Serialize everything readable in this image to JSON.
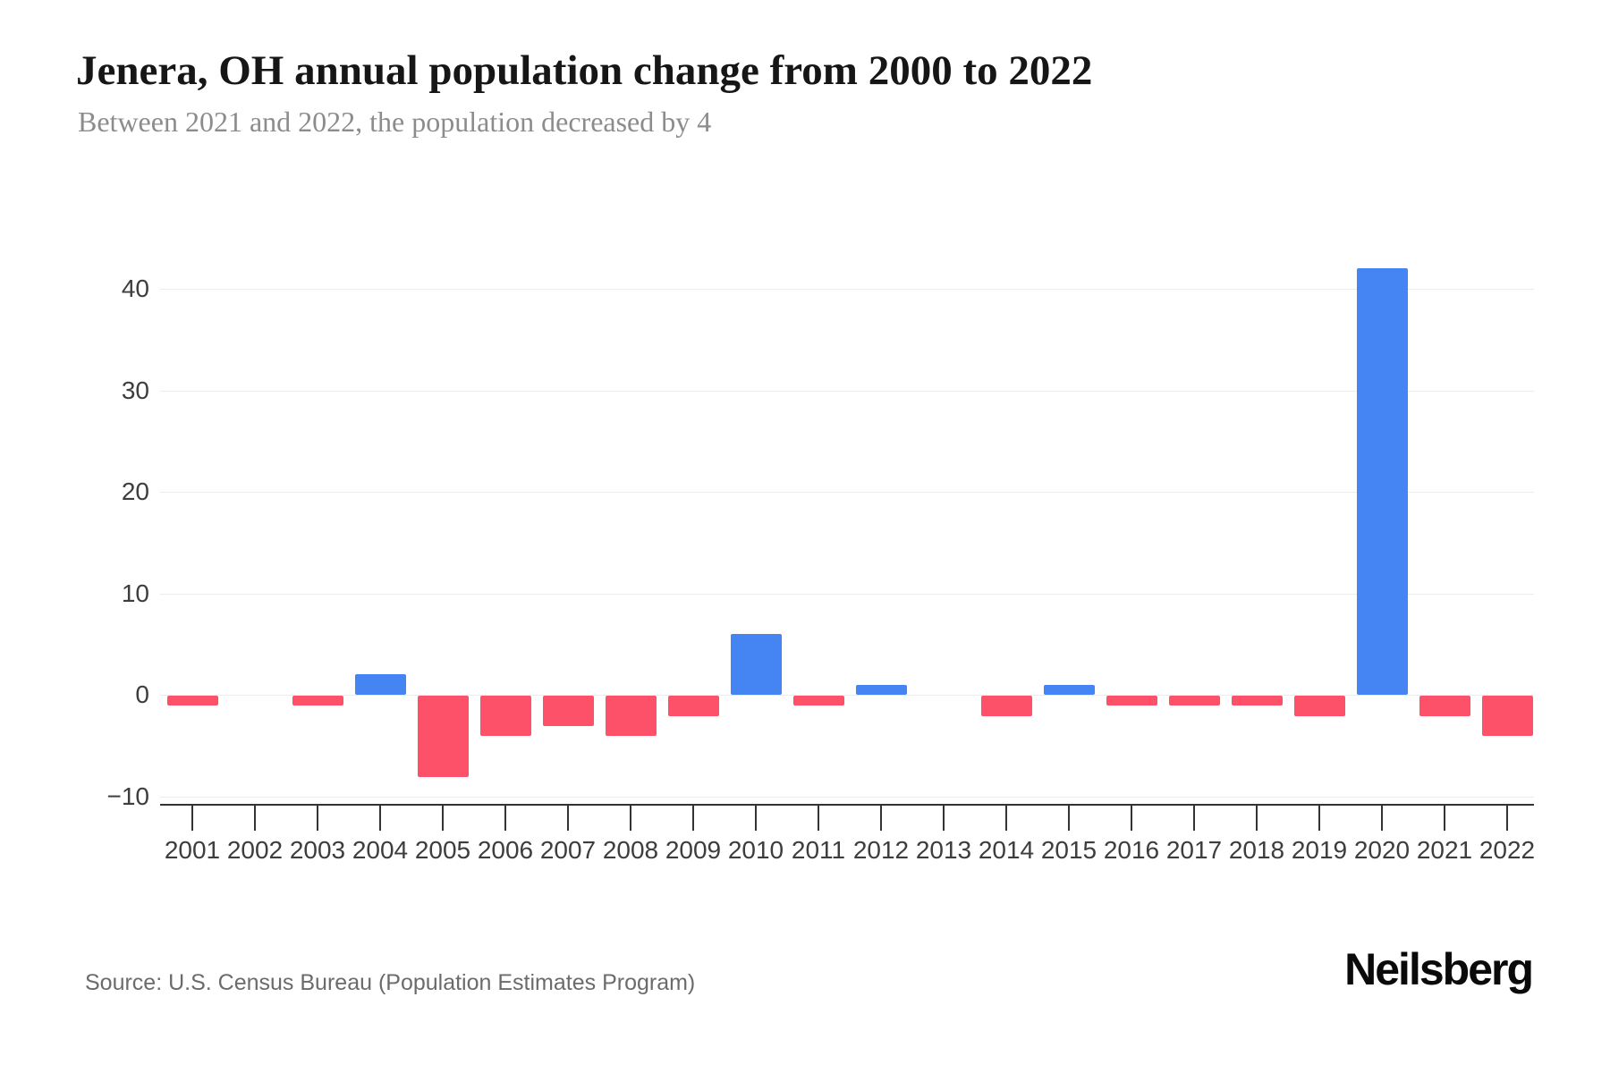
{
  "header": {
    "title": "Jenera, OH annual population change from 2000 to 2022",
    "subtitle": "Between 2021 and 2022, the population decreased by 4"
  },
  "chart_data": {
    "type": "bar",
    "title": "Jenera, OH annual population change from 2000 to 2022",
    "subtitle": "Between 2021 and 2022, the population decreased by 4",
    "categories": [
      "2001",
      "2002",
      "2003",
      "2004",
      "2005",
      "2006",
      "2007",
      "2008",
      "2009",
      "2010",
      "2011",
      "2012",
      "2013",
      "2014",
      "2015",
      "2016",
      "2017",
      "2018",
      "2019",
      "2020",
      "2021",
      "2022"
    ],
    "values": [
      -1,
      0,
      -1,
      2,
      -8,
      -4,
      -3,
      -4,
      -2,
      6,
      -1,
      1,
      0,
      -2,
      1,
      -1,
      -1,
      -1,
      -2,
      42,
      -2,
      -4
    ],
    "xlabel": "",
    "ylabel": "",
    "y_ticks": [
      40,
      30,
      20,
      10,
      0,
      -10
    ],
    "ylim": [
      -10,
      45
    ],
    "grid": "horizontal",
    "legend": "none",
    "positive_color": "#4484f3",
    "negative_color": "#fc5168",
    "gridline_color": "#ececec",
    "axis_color": "#333333"
  },
  "footer": {
    "source": "Source: U.S. Census Bureau (Population Estimates Program)",
    "logo": "Neilsberg"
  }
}
